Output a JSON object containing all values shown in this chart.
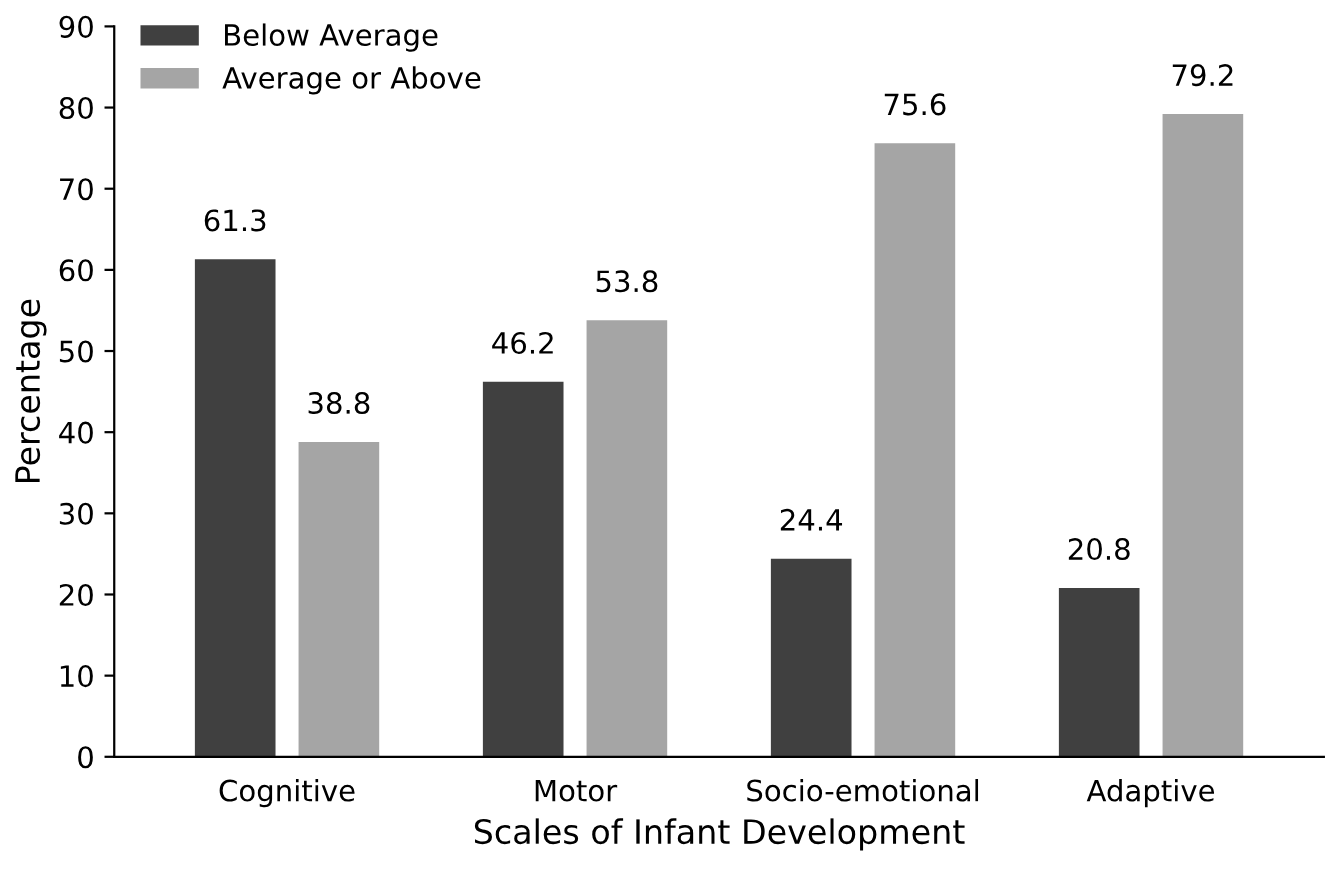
{
  "chart_data": {
    "type": "bar",
    "xlabel": "Scales of Infant Development",
    "ylabel": "Percentage",
    "categories": [
      "Cognitive",
      "Motor",
      "Socio-emotional",
      "Adaptive"
    ],
    "series": [
      {
        "name": "Below Average",
        "color": "#404040",
        "values": [
          61.3,
          46.2,
          24.4,
          20.8
        ]
      },
      {
        "name": "Average or Above",
        "color": "#a5a5a5",
        "values": [
          38.8,
          53.8,
          75.6,
          79.2
        ]
      }
    ],
    "ylim": [
      0,
      90
    ],
    "yticks": [
      0,
      10,
      20,
      30,
      40,
      50,
      60,
      70,
      80,
      90
    ],
    "data_labels": true,
    "grid": false,
    "legend": "top left"
  }
}
